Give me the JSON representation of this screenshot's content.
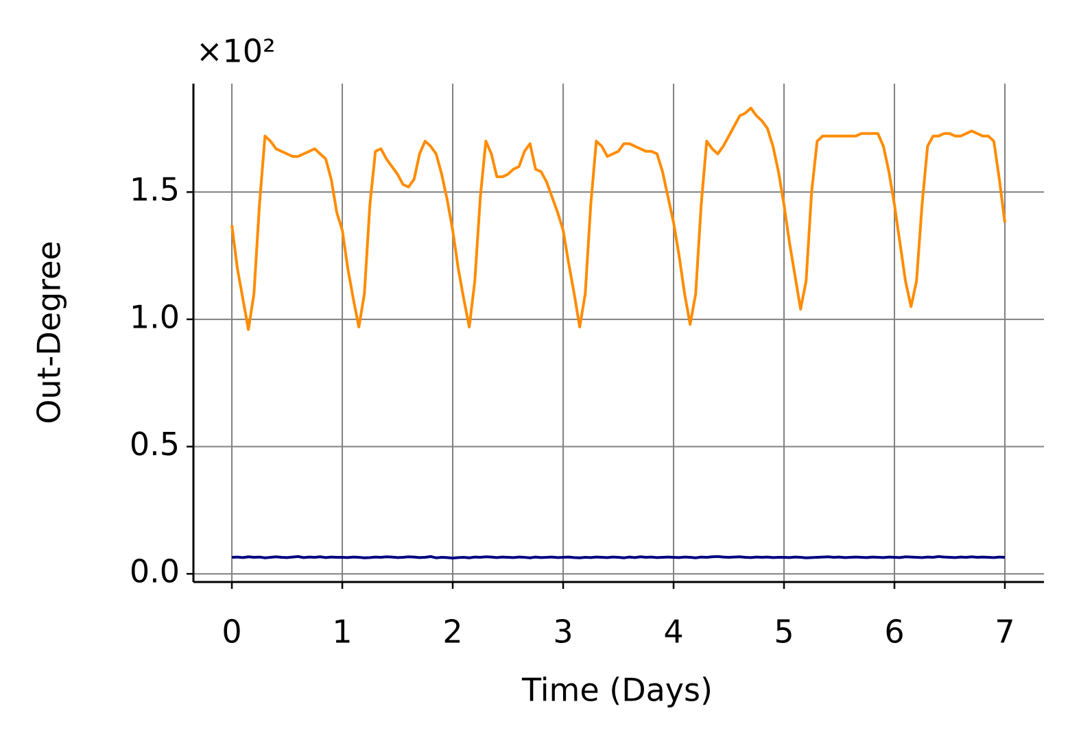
{
  "chart_data": {
    "type": "line",
    "x_label": "Time (Days)",
    "y_label": "Out-Degree",
    "y_offset_label": "×10²",
    "xlim": [
      -0.348,
      7.354
    ],
    "ylim": [
      -0.032,
      1.926
    ],
    "xticks": [
      0,
      1,
      2,
      3,
      4,
      5,
      6,
      7
    ],
    "yticks": [
      {
        "value": 0,
        "label": "0.0"
      },
      0.5,
      {
        "value": 1,
        "label": "1.0"
      },
      1.5
    ],
    "grid": true,
    "x": [
      0,
      0.05,
      0.1,
      0.15,
      0.2,
      0.25,
      0.3,
      0.35,
      0.4,
      0.45,
      0.5,
      0.55,
      0.6,
      0.65,
      0.7,
      0.75,
      0.8,
      0.85,
      0.9,
      0.95,
      1,
      1.05,
      1.1,
      1.15,
      1.2,
      1.25,
      1.3,
      1.35,
      1.4,
      1.45,
      1.5,
      1.55,
      1.6,
      1.65,
      1.7,
      1.75,
      1.8,
      1.85,
      1.9,
      1.95,
      2,
      2.05,
      2.1,
      2.15,
      2.2,
      2.25,
      2.3,
      2.35,
      2.4,
      2.45,
      2.5,
      2.55,
      2.6,
      2.65,
      2.7,
      2.75,
      2.8,
      2.85,
      2.9,
      2.95,
      3,
      3.05,
      3.1,
      3.15,
      3.2,
      3.25,
      3.3,
      3.35,
      3.4,
      3.45,
      3.5,
      3.55,
      3.6,
      3.65,
      3.7,
      3.75,
      3.8,
      3.85,
      3.9,
      3.95,
      4,
      4.05,
      4.1,
      4.15,
      4.2,
      4.25,
      4.3,
      4.35,
      4.4,
      4.45,
      4.5,
      4.55,
      4.6,
      4.65,
      4.7,
      4.75,
      4.8,
      4.85,
      4.9,
      4.95,
      5,
      5.05,
      5.1,
      5.15,
      5.2,
      5.25,
      5.3,
      5.35,
      5.4,
      5.45,
      5.5,
      5.55,
      5.6,
      5.65,
      5.7,
      5.75,
      5.8,
      5.85,
      5.9,
      5.95,
      6,
      6.05,
      6.1,
      6.15,
      6.2,
      6.25,
      6.3,
      6.35,
      6.4,
      6.45,
      6.5,
      6.55,
      6.6,
      6.65,
      6.7,
      6.75,
      6.8,
      6.85,
      6.9,
      6.95,
      7
    ],
    "series": [
      {
        "color": "#ff8c00",
        "values": [
          1.37,
          1.2,
          1.08,
          0.96,
          1.1,
          1.45,
          1.72,
          1.7,
          1.67,
          1.66,
          1.65,
          1.64,
          1.64,
          1.65,
          1.66,
          1.67,
          1.65,
          1.63,
          1.55,
          1.42,
          1.35,
          1.2,
          1.08,
          0.97,
          1.1,
          1.45,
          1.66,
          1.67,
          1.63,
          1.6,
          1.57,
          1.53,
          1.52,
          1.55,
          1.65,
          1.7,
          1.68,
          1.65,
          1.57,
          1.47,
          1.35,
          1.2,
          1.08,
          0.97,
          1.15,
          1.48,
          1.7,
          1.65,
          1.56,
          1.56,
          1.57,
          1.59,
          1.6,
          1.66,
          1.69,
          1.59,
          1.58,
          1.54,
          1.48,
          1.42,
          1.35,
          1.22,
          1.1,
          0.97,
          1.1,
          1.45,
          1.7,
          1.68,
          1.64,
          1.65,
          1.66,
          1.69,
          1.69,
          1.68,
          1.67,
          1.66,
          1.66,
          1.65,
          1.58,
          1.48,
          1.38,
          1.25,
          1.1,
          0.98,
          1.1,
          1.45,
          1.7,
          1.67,
          1.65,
          1.68,
          1.72,
          1.76,
          1.8,
          1.81,
          1.83,
          1.8,
          1.78,
          1.75,
          1.68,
          1.58,
          1.45,
          1.3,
          1.17,
          1.04,
          1.15,
          1.5,
          1.7,
          1.72,
          1.72,
          1.72,
          1.72,
          1.72,
          1.72,
          1.72,
          1.73,
          1.73,
          1.73,
          1.73,
          1.68,
          1.58,
          1.45,
          1.3,
          1.15,
          1.05,
          1.15,
          1.45,
          1.68,
          1.72,
          1.72,
          1.73,
          1.73,
          1.72,
          1.72,
          1.73,
          1.74,
          1.73,
          1.72,
          1.72,
          1.7,
          1.55,
          1.38
        ]
      },
      {
        "color": "#000080",
        "values": [
          0.065,
          0.066,
          0.064,
          0.067,
          0.065,
          0.066,
          0.063,
          0.065,
          0.067,
          0.065,
          0.064,
          0.066,
          0.068,
          0.064,
          0.066,
          0.065,
          0.067,
          0.064,
          0.066,
          0.065,
          0.065,
          0.064,
          0.066,
          0.065,
          0.063,
          0.064,
          0.066,
          0.065,
          0.067,
          0.066,
          0.064,
          0.065,
          0.067,
          0.066,
          0.064,
          0.065,
          0.068,
          0.063,
          0.065,
          0.064,
          0.062,
          0.064,
          0.065,
          0.063,
          0.066,
          0.065,
          0.067,
          0.066,
          0.064,
          0.066,
          0.065,
          0.064,
          0.066,
          0.065,
          0.063,
          0.066,
          0.064,
          0.065,
          0.066,
          0.064,
          0.065,
          0.066,
          0.064,
          0.063,
          0.065,
          0.064,
          0.066,
          0.065,
          0.064,
          0.066,
          0.065,
          0.063,
          0.066,
          0.064,
          0.067,
          0.065,
          0.066,
          0.064,
          0.065,
          0.066,
          0.065,
          0.064,
          0.066,
          0.065,
          0.063,
          0.066,
          0.065,
          0.067,
          0.068,
          0.066,
          0.065,
          0.066,
          0.067,
          0.065,
          0.064,
          0.066,
          0.065,
          0.066,
          0.064,
          0.065,
          0.065,
          0.064,
          0.066,
          0.065,
          0.063,
          0.064,
          0.065,
          0.066,
          0.067,
          0.065,
          0.066,
          0.064,
          0.065,
          0.066,
          0.065,
          0.064,
          0.066,
          0.065,
          0.064,
          0.066,
          0.065,
          0.064,
          0.067,
          0.066,
          0.065,
          0.064,
          0.066,
          0.065,
          0.068,
          0.066,
          0.065,
          0.064,
          0.066,
          0.065,
          0.067,
          0.065,
          0.066,
          0.065,
          0.064,
          0.066,
          0.065
        ]
      }
    ]
  }
}
